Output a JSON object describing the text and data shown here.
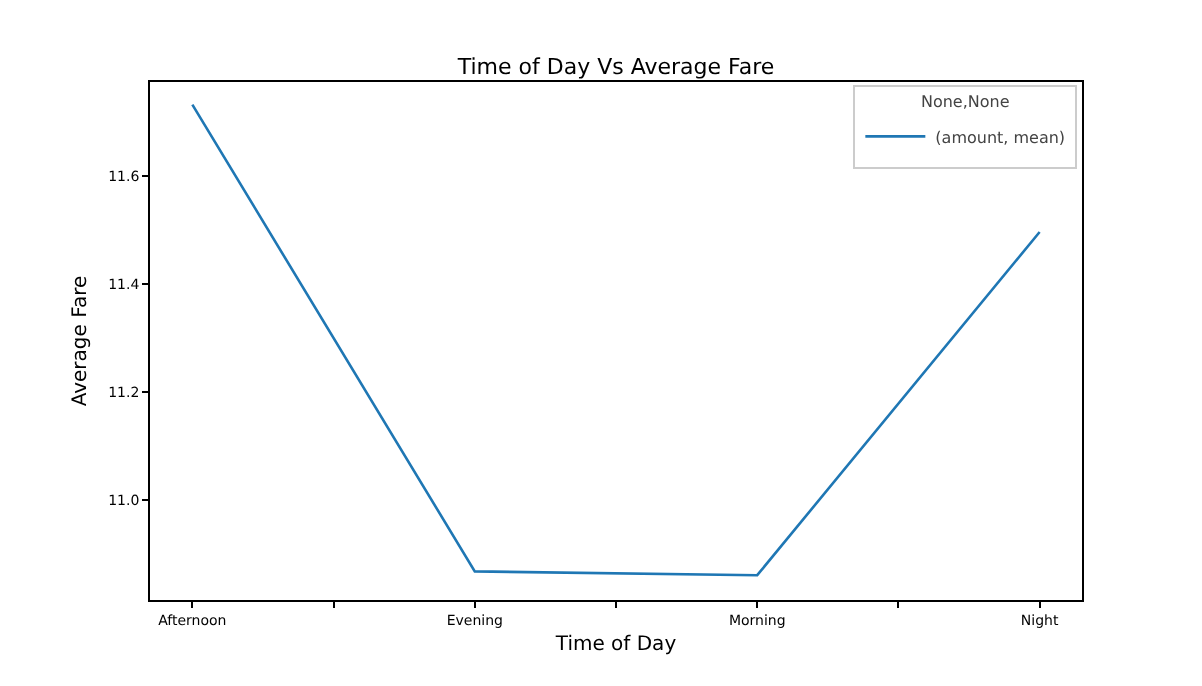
{
  "chart_data": {
    "type": "line",
    "title": "Time of Day Vs Average Fare",
    "xlabel": "Time of Day",
    "ylabel": "Average Fare",
    "legend_title": "None,None",
    "categories": [
      "Afternoon",
      "Evening",
      "Morning",
      "Night"
    ],
    "series": [
      {
        "name": "(amount, mean)",
        "color": "#1f77b4",
        "values": [
          11.733,
          10.868,
          10.861,
          11.497
        ]
      }
    ],
    "ylim": [
      10.815,
      11.775
    ],
    "yticks": [
      {
        "value": 11,
        "label": "11.0"
      },
      11.2,
      11.4,
      11.6
    ],
    "grid": false,
    "legend": "top right",
    "marker": "none",
    "line_style": "solid"
  }
}
